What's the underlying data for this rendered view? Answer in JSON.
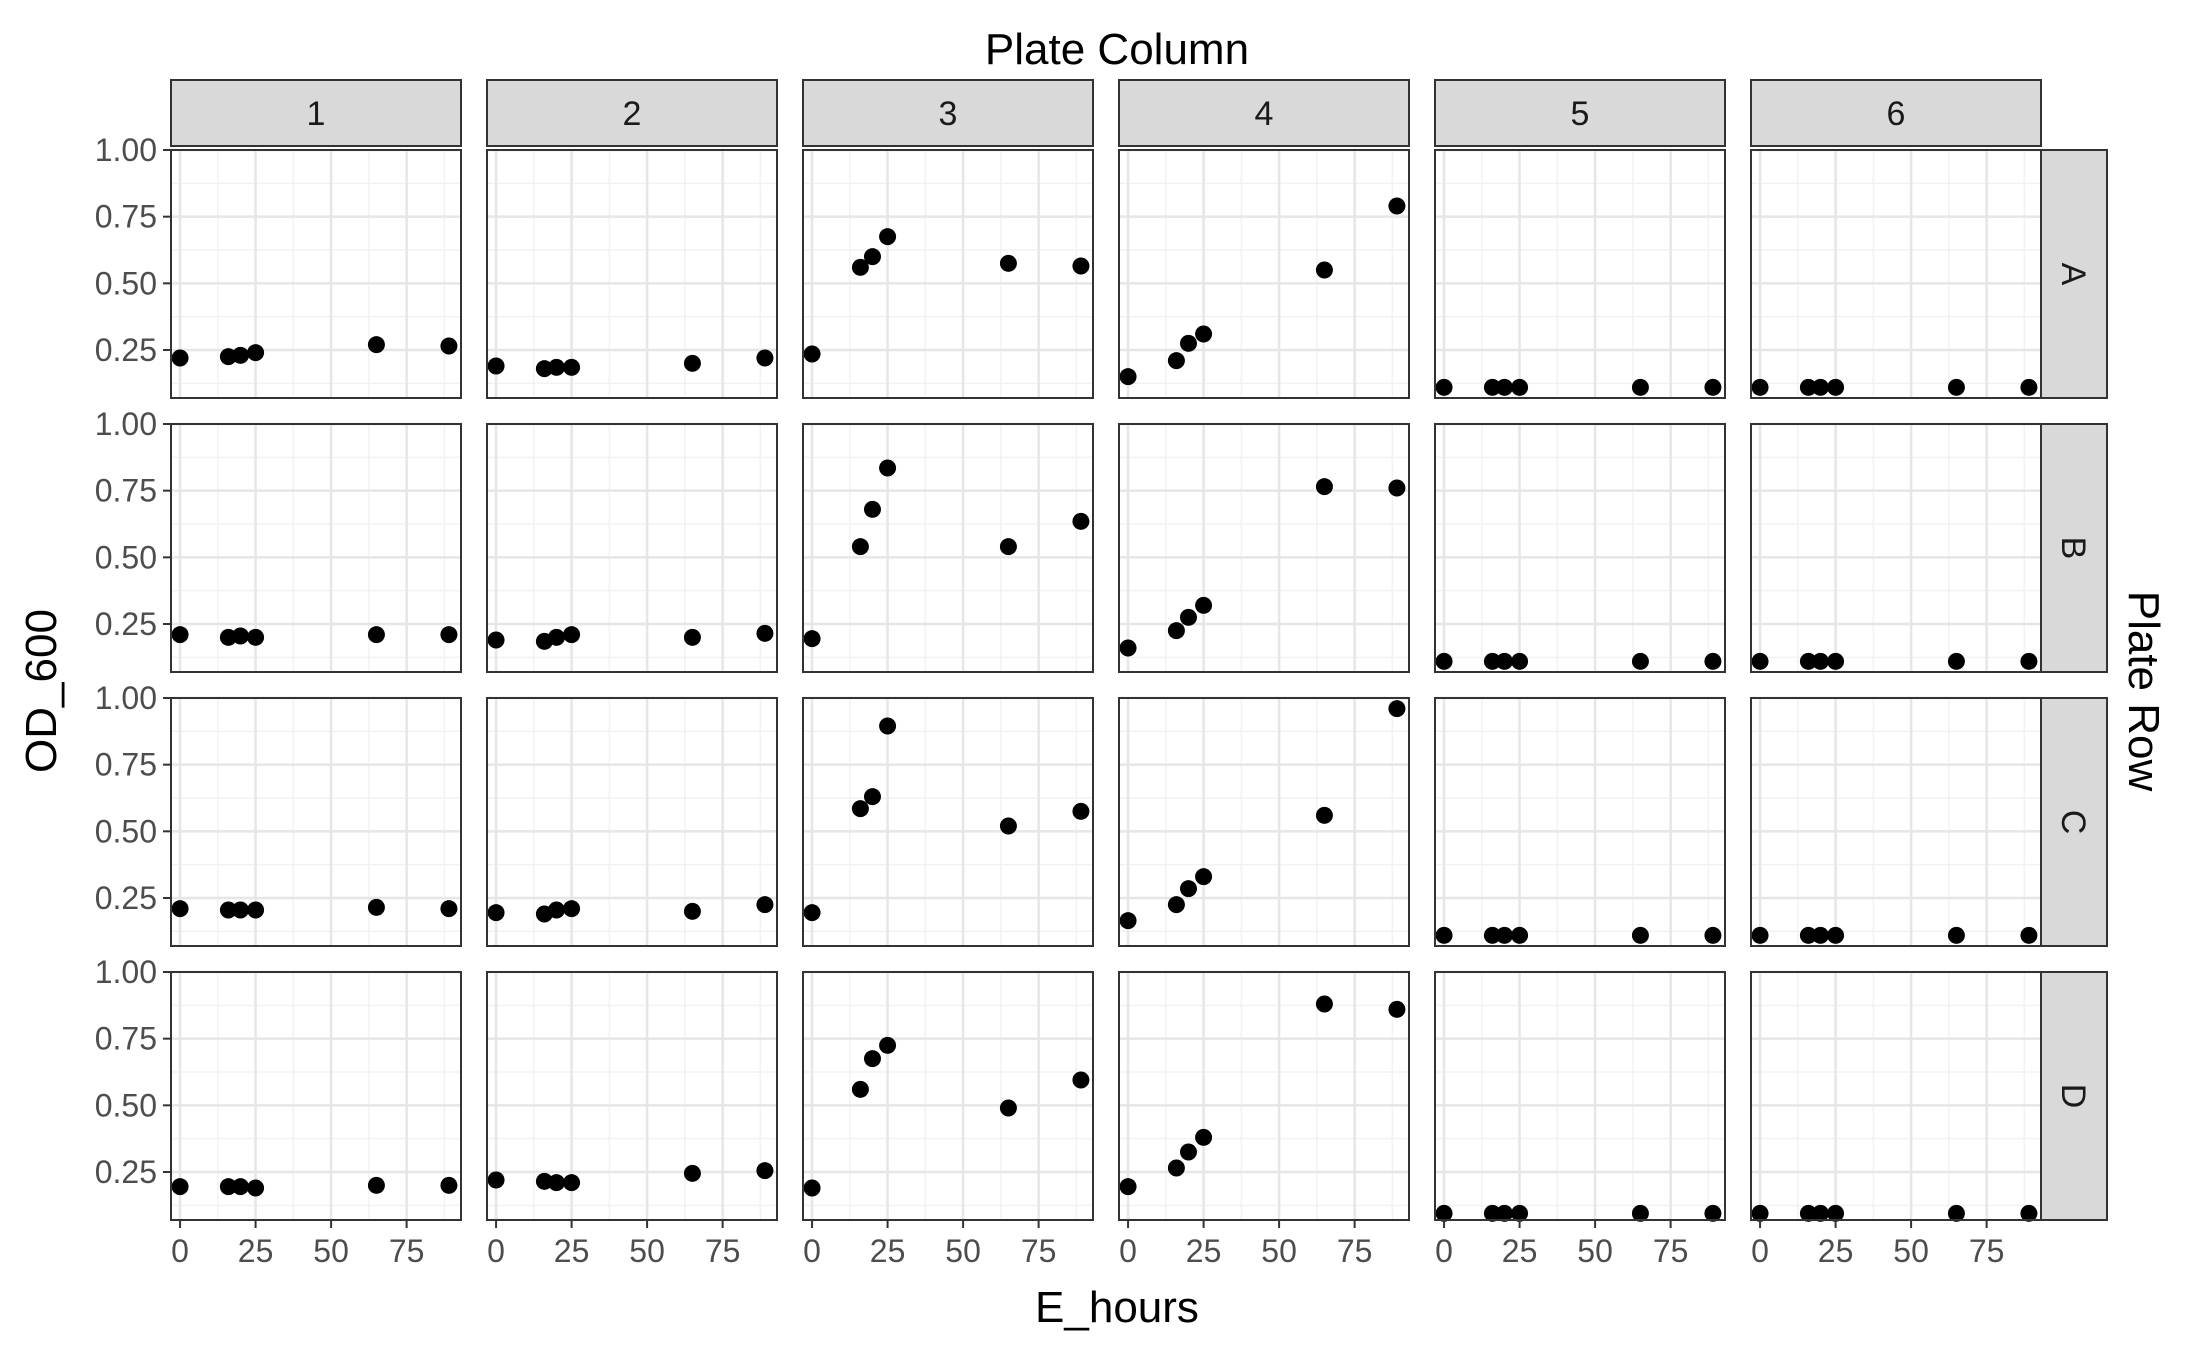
{
  "facet_col_title": "Plate Column",
  "facet_row_title": "Plate Row",
  "chart_data": {
    "type": "scatter",
    "xlabel": "E_hours",
    "ylabel": "OD_600",
    "facet_columns": [
      "1",
      "2",
      "3",
      "4",
      "5",
      "6"
    ],
    "facet_rows": [
      "A",
      "B",
      "C",
      "D"
    ],
    "x": [
      0,
      16,
      20,
      25,
      65,
      89
    ],
    "xlim": [
      -3,
      93
    ],
    "ylim": [
      0.07,
      1.0
    ],
    "x_ticks": [
      0,
      25,
      50,
      75
    ],
    "y_ticks": [
      0.25,
      0.5,
      0.75,
      1.0
    ],
    "x_tick_labels": [
      "0",
      "25",
      "50",
      "75"
    ],
    "y_tick_labels": [
      "0.25",
      "0.50",
      "0.75",
      "1.00"
    ],
    "grid": true,
    "point_color": "#000000",
    "strip_fill": "#d9d9d9",
    "panels": [
      {
        "row": "A",
        "col": "1",
        "y": [
          0.22,
          0.225,
          0.23,
          0.24,
          0.27,
          0.265
        ]
      },
      {
        "row": "A",
        "col": "2",
        "y": [
          0.19,
          0.18,
          0.185,
          0.185,
          0.2,
          0.22
        ]
      },
      {
        "row": "A",
        "col": "3",
        "y": [
          0.235,
          0.56,
          0.6,
          0.675,
          0.575,
          0.565
        ]
      },
      {
        "row": "A",
        "col": "4",
        "y": [
          0.15,
          0.21,
          0.275,
          0.31,
          0.55,
          0.79
        ]
      },
      {
        "row": "A",
        "col": "5",
        "y": [
          0.11,
          0.11,
          0.11,
          0.11,
          0.11,
          0.11
        ]
      },
      {
        "row": "A",
        "col": "6",
        "y": [
          0.11,
          0.11,
          0.11,
          0.11,
          0.11,
          0.11
        ]
      },
      {
        "row": "B",
        "col": "1",
        "y": [
          0.21,
          0.2,
          0.205,
          0.2,
          0.21,
          0.21
        ]
      },
      {
        "row": "B",
        "col": "2",
        "y": [
          0.19,
          0.185,
          0.2,
          0.21,
          0.2,
          0.215
        ]
      },
      {
        "row": "B",
        "col": "3",
        "y": [
          0.195,
          0.54,
          0.68,
          0.835,
          0.54,
          0.635
        ]
      },
      {
        "row": "B",
        "col": "4",
        "y": [
          0.16,
          0.225,
          0.275,
          0.32,
          0.765,
          0.76
        ]
      },
      {
        "row": "B",
        "col": "5",
        "y": [
          0.11,
          0.11,
          0.11,
          0.11,
          0.11,
          0.11
        ]
      },
      {
        "row": "B",
        "col": "6",
        "y": [
          0.11,
          0.11,
          0.11,
          0.11,
          0.11,
          0.11
        ]
      },
      {
        "row": "C",
        "col": "1",
        "y": [
          0.21,
          0.205,
          0.205,
          0.205,
          0.215,
          0.21
        ]
      },
      {
        "row": "C",
        "col": "2",
        "y": [
          0.195,
          0.19,
          0.205,
          0.21,
          0.2,
          0.225
        ]
      },
      {
        "row": "C",
        "col": "3",
        "y": [
          0.195,
          0.585,
          0.63,
          0.895,
          0.52,
          0.575
        ]
      },
      {
        "row": "C",
        "col": "4",
        "y": [
          0.165,
          0.225,
          0.285,
          0.33,
          0.56,
          0.96
        ]
      },
      {
        "row": "C",
        "col": "5",
        "y": [
          0.11,
          0.11,
          0.11,
          0.11,
          0.11,
          0.11
        ]
      },
      {
        "row": "C",
        "col": "6",
        "y": [
          0.11,
          0.11,
          0.11,
          0.11,
          0.11,
          0.11
        ]
      },
      {
        "row": "D",
        "col": "1",
        "y": [
          0.195,
          0.195,
          0.195,
          0.19,
          0.2,
          0.2
        ]
      },
      {
        "row": "D",
        "col": "2",
        "y": [
          0.22,
          0.215,
          0.21,
          0.21,
          0.245,
          0.255
        ]
      },
      {
        "row": "D",
        "col": "3",
        "y": [
          0.19,
          0.56,
          0.675,
          0.725,
          0.49,
          0.595
        ]
      },
      {
        "row": "D",
        "col": "4",
        "y": [
          0.195,
          0.265,
          0.325,
          0.38,
          0.88,
          0.86
        ]
      },
      {
        "row": "D",
        "col": "5",
        "y": [
          0.095,
          0.095,
          0.095,
          0.095,
          0.095,
          0.095
        ]
      },
      {
        "row": "D",
        "col": "6",
        "y": [
          0.095,
          0.095,
          0.095,
          0.095,
          0.095,
          0.095
        ]
      }
    ]
  }
}
